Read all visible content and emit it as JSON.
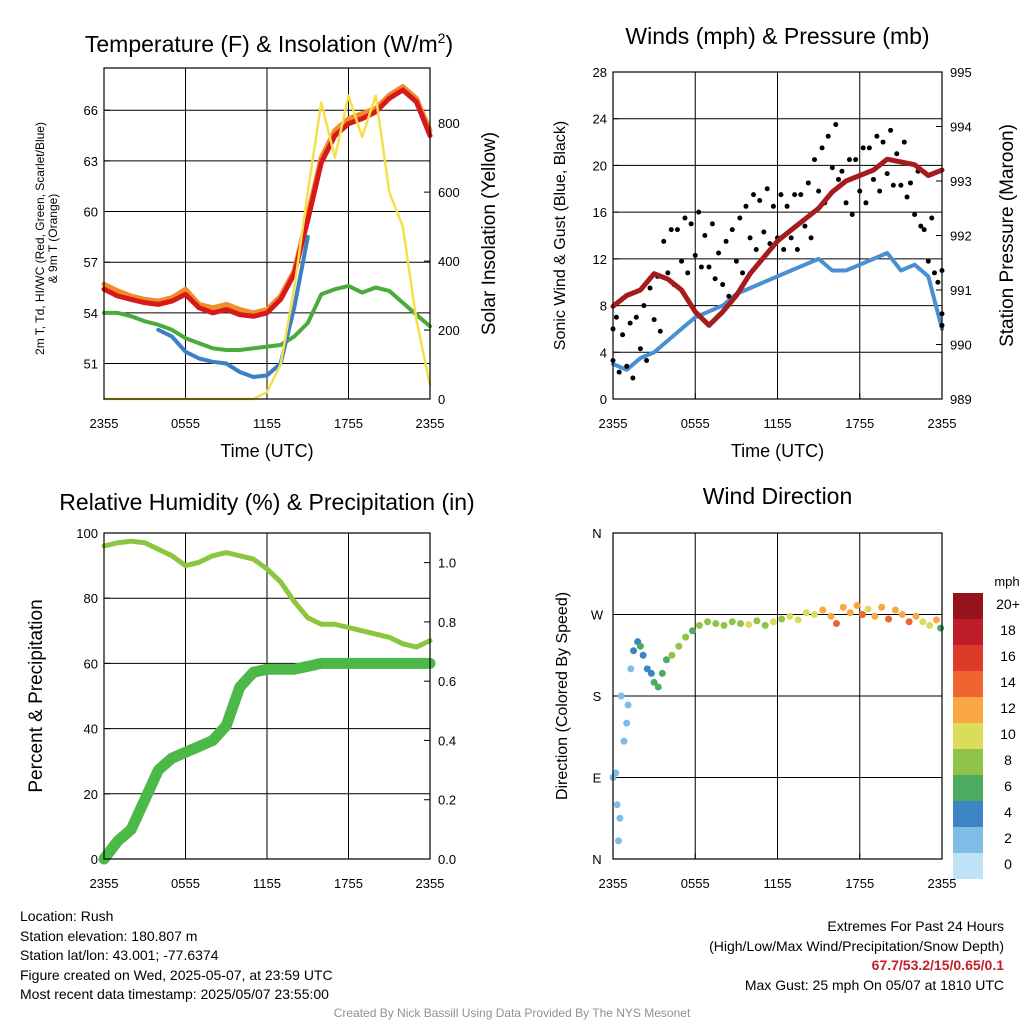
{
  "chart_data": [
    {
      "type": "line",
      "title": "Temperature (F) & Insolation (W/m²)",
      "xlabel": "Time (UTC)",
      "ylabel": "2m T, Td, HI/WC (Red, Green, Scarlet/Blue) & 9m T (Orange)",
      "y2label": "Solar Insolation (Yellow)",
      "x_ticks": [
        "2355",
        "0555",
        "1155",
        "1755",
        "2355"
      ],
      "y_ticks": [
        "51",
        "54",
        "57",
        "60",
        "63",
        "66"
      ],
      "ylim": [
        48.9,
        68.5
      ],
      "y2_ticks": [
        "0",
        "200",
        "400",
        "600",
        "800"
      ],
      "y2lim": [
        0,
        960
      ],
      "x_hours": [
        0,
        1,
        2,
        3,
        4,
        5,
        6,
        7,
        8,
        9,
        10,
        11,
        12,
        13,
        14,
        15,
        16,
        17,
        18,
        19,
        20,
        21,
        22,
        23,
        24
      ],
      "series": [
        {
          "key": "orange",
          "color": "#f28c28",
          "values": [
            55.7,
            55.3,
            55.0,
            54.8,
            54.7,
            54.9,
            55.4,
            54.5,
            54.3,
            54.5,
            54.2,
            54.0,
            54.2,
            55.0,
            56.5,
            59.8,
            63.2,
            64.8,
            65.5,
            65.8,
            66.1,
            66.9,
            67.4,
            66.7,
            64.8
          ]
        },
        {
          "key": "red",
          "color": "#d7191c",
          "values": [
            55.4,
            55.0,
            54.8,
            54.6,
            54.5,
            54.7,
            55.1,
            54.3,
            54.0,
            54.2,
            53.9,
            53.8,
            54.0,
            54.8,
            56.3,
            59.5,
            62.9,
            64.5,
            65.2,
            65.5,
            65.9,
            66.7,
            67.2,
            66.5,
            64.5
          ]
        },
        {
          "key": "green",
          "color": "#4aaa3c",
          "values": [
            54.0,
            54.0,
            53.8,
            53.5,
            53.3,
            53.0,
            52.5,
            52.2,
            51.9,
            51.8,
            51.8,
            51.9,
            52.0,
            52.1,
            52.6,
            53.4,
            55.1,
            55.4,
            55.6,
            55.2,
            55.5,
            55.3,
            54.6,
            53.9,
            53.2
          ]
        },
        {
          "key": "blue",
          "color": "#3d7fc4",
          "values": [
            null,
            null,
            null,
            null,
            53.0,
            52.6,
            51.7,
            51.3,
            51.1,
            51.0,
            50.5,
            50.2,
            50.3,
            51.0,
            54.3,
            58.5,
            null,
            null,
            null,
            null,
            null,
            null,
            null,
            null,
            null
          ]
        },
        {
          "key": "yellow",
          "axis": "y2",
          "color": "#f7df4b",
          "values": [
            0,
            0,
            0,
            0,
            0,
            0,
            0,
            0,
            0,
            0,
            0,
            0,
            20,
            100,
            320,
            600,
            860,
            700,
            880,
            760,
            880,
            600,
            500,
            230,
            40
          ]
        }
      ]
    },
    {
      "type": "line",
      "title": "Winds (mph) & Pressure (mb)",
      "xlabel": "Time (UTC)",
      "ylabel": "Sonic Wind & Gust (Blue, Black)",
      "y2label": "Station Pressure (Maroon)",
      "x_ticks": [
        "2355",
        "0555",
        "1155",
        "1755",
        "2355"
      ],
      "y_ticks": [
        "0",
        "4",
        "8",
        "12",
        "16",
        "20",
        "24",
        "28"
      ],
      "ylim": [
        0,
        28
      ],
      "y2_ticks": [
        "989",
        "990",
        "991",
        "992",
        "993",
        "994",
        "995"
      ],
      "y2lim": [
        989,
        995
      ],
      "x_hours": [
        0,
        1,
        2,
        3,
        4,
        5,
        6,
        7,
        8,
        9,
        10,
        11,
        12,
        13,
        14,
        15,
        16,
        17,
        18,
        19,
        20,
        21,
        22,
        23,
        24
      ],
      "series": [
        {
          "key": "wind",
          "color": "#4a90d0",
          "values": [
            3.0,
            2.5,
            3.5,
            4.0,
            5.0,
            6.0,
            7.0,
            7.5,
            8.0,
            9.0,
            9.5,
            10.0,
            10.5,
            11.0,
            11.5,
            12.0,
            11.0,
            11.0,
            11.5,
            12.0,
            12.5,
            11.0,
            11.5,
            10.5,
            6.0
          ]
        },
        {
          "key": "gust",
          "color": "#000000",
          "values": [
            4.5,
            4.0,
            5.5,
            8.0,
            12.0,
            13.0,
            13.5,
            12.5,
            11.0,
            13.0,
            15.0,
            15.5,
            15.0,
            15.0,
            16.0,
            19.0,
            21.0,
            18.0,
            19.0,
            20.0,
            20.5,
            19.5,
            17.0,
            13.0,
            8.5
          ]
        },
        {
          "key": "pressure",
          "axis": "y2",
          "color": "#a51c1c",
          "values": [
            990.7,
            990.9,
            991.0,
            991.3,
            991.2,
            991.0,
            990.6,
            990.35,
            990.6,
            990.9,
            991.3,
            991.6,
            991.9,
            992.1,
            992.3,
            992.5,
            992.8,
            993.0,
            993.1,
            993.2,
            993.4,
            993.35,
            993.3,
            993.1,
            993.2
          ]
        }
      ]
    },
    {
      "type": "line",
      "title": "Relative Humidity (%) & Precipitation (in)",
      "xlabel": "",
      "ylabel": "Percent & Precipitation",
      "x_ticks": [
        "2355",
        "0555",
        "1155",
        "1755",
        "2355"
      ],
      "y_ticks": [
        "0",
        "20",
        "40",
        "60",
        "80",
        "100"
      ],
      "ylim": [
        0,
        100
      ],
      "y2_ticks": [
        "0.0",
        "0.2",
        "0.4",
        "0.6",
        "0.8",
        "1.0"
      ],
      "y2lim": [
        0,
        1.1
      ],
      "x_hours": [
        0,
        1,
        2,
        3,
        4,
        5,
        6,
        7,
        8,
        9,
        10,
        11,
        12,
        13,
        14,
        15,
        16,
        17,
        18,
        19,
        20,
        21,
        22,
        23,
        24
      ],
      "series": [
        {
          "key": "rh",
          "color": "#8cc63f",
          "values": [
            96,
            97,
            97.5,
            97,
            95,
            93,
            90,
            91,
            93,
            94,
            93,
            92,
            89,
            85,
            79,
            74,
            72,
            72,
            71,
            70,
            69,
            68,
            66,
            65,
            67
          ]
        },
        {
          "key": "precip",
          "axis": "y2",
          "color": "#4cb848",
          "values": [
            0.0,
            0.06,
            0.1,
            0.2,
            0.3,
            0.34,
            0.36,
            0.38,
            0.4,
            0.45,
            0.58,
            0.63,
            0.64,
            0.64,
            0.64,
            0.65,
            0.66,
            0.66,
            0.66,
            0.66,
            0.66,
            0.66,
            0.66,
            0.66,
            0.66
          ]
        }
      ]
    },
    {
      "type": "scatter",
      "title": "Wind Direction",
      "xlabel": "",
      "ylabel": "Direction (Colored By Speed)",
      "x_ticks": [
        "2355",
        "0555",
        "1155",
        "1755",
        "2355"
      ],
      "y_ticks": [
        "N",
        "E",
        "S",
        "W",
        "N"
      ],
      "ylim": [
        0,
        360
      ],
      "colorbar_title": "mph",
      "colorbar_labels": [
        "20+",
        "18",
        "16",
        "14",
        "12",
        "10",
        "8",
        "6",
        "4",
        "2",
        "0"
      ],
      "colorbar_colors": [
        "#96131b",
        "#bd1d26",
        "#dc3a2a",
        "#ef6530",
        "#f9a643",
        "#dadd5a",
        "#8fc34a",
        "#4cab5f",
        "#3d84c2",
        "#7fbde6",
        "#bfe3f6"
      ],
      "points": [
        {
          "x": 0.0,
          "y": 90,
          "speed": 2
        },
        {
          "x": 0.2,
          "y": 95,
          "speed": 2
        },
        {
          "x": 0.3,
          "y": 60,
          "speed": 1
        },
        {
          "x": 0.4,
          "y": 20,
          "speed": 1
        },
        {
          "x": 0.5,
          "y": 45,
          "speed": 1
        },
        {
          "x": 0.8,
          "y": 130,
          "speed": 2
        },
        {
          "x": 1.0,
          "y": 150,
          "speed": 2
        },
        {
          "x": 1.1,
          "y": 170,
          "speed": 2
        },
        {
          "x": 0.6,
          "y": 180,
          "speed": 2
        },
        {
          "x": 1.3,
          "y": 210,
          "speed": 2
        },
        {
          "x": 1.5,
          "y": 230,
          "speed": 3
        },
        {
          "x": 1.8,
          "y": 240,
          "speed": 4
        },
        {
          "x": 2.0,
          "y": 235,
          "speed": 5
        },
        {
          "x": 2.2,
          "y": 225,
          "speed": 4
        },
        {
          "x": 2.5,
          "y": 210,
          "speed": 3
        },
        {
          "x": 2.8,
          "y": 205,
          "speed": 4
        },
        {
          "x": 3.0,
          "y": 195,
          "speed": 5
        },
        {
          "x": 3.3,
          "y": 190,
          "speed": 6
        },
        {
          "x": 3.6,
          "y": 205,
          "speed": 5
        },
        {
          "x": 3.9,
          "y": 220,
          "speed": 6
        },
        {
          "x": 4.3,
          "y": 225,
          "speed": 7
        },
        {
          "x": 4.8,
          "y": 235,
          "speed": 7
        },
        {
          "x": 5.3,
          "y": 245,
          "speed": 7
        },
        {
          "x": 5.8,
          "y": 252,
          "speed": 6
        },
        {
          "x": 6.3,
          "y": 258,
          "speed": 7
        },
        {
          "x": 6.9,
          "y": 262,
          "speed": 8
        },
        {
          "x": 7.5,
          "y": 260,
          "speed": 7
        },
        {
          "x": 8.1,
          "y": 258,
          "speed": 8
        },
        {
          "x": 8.7,
          "y": 262,
          "speed": 7
        },
        {
          "x": 9.3,
          "y": 260,
          "speed": 8
        },
        {
          "x": 9.9,
          "y": 259,
          "speed": 9
        },
        {
          "x": 10.5,
          "y": 263,
          "speed": 8
        },
        {
          "x": 11.1,
          "y": 258,
          "speed": 7
        },
        {
          "x": 11.7,
          "y": 262,
          "speed": 9
        },
        {
          "x": 12.3,
          "y": 265,
          "speed": 8
        },
        {
          "x": 12.9,
          "y": 268,
          "speed": 9
        },
        {
          "x": 13.5,
          "y": 264,
          "speed": 10
        },
        {
          "x": 14.1,
          "y": 272,
          "speed": 9
        },
        {
          "x": 14.7,
          "y": 270,
          "speed": 10
        },
        {
          "x": 15.3,
          "y": 275,
          "speed": 11
        },
        {
          "x": 15.9,
          "y": 268,
          "speed": 12
        },
        {
          "x": 16.3,
          "y": 260,
          "speed": 14
        },
        {
          "x": 16.8,
          "y": 278,
          "speed": 11
        },
        {
          "x": 17.3,
          "y": 272,
          "speed": 12
        },
        {
          "x": 17.8,
          "y": 280,
          "speed": 12
        },
        {
          "x": 18.2,
          "y": 270,
          "speed": 13
        },
        {
          "x": 18.6,
          "y": 276,
          "speed": 10
        },
        {
          "x": 19.1,
          "y": 268,
          "speed": 11
        },
        {
          "x": 19.6,
          "y": 278,
          "speed": 12
        },
        {
          "x": 20.1,
          "y": 265,
          "speed": 13
        },
        {
          "x": 20.6,
          "y": 275,
          "speed": 11
        },
        {
          "x": 21.1,
          "y": 270,
          "speed": 12
        },
        {
          "x": 21.6,
          "y": 262,
          "speed": 14
        },
        {
          "x": 22.1,
          "y": 268,
          "speed": 12
        },
        {
          "x": 22.6,
          "y": 262,
          "speed": 9
        },
        {
          "x": 23.1,
          "y": 258,
          "speed": 10
        },
        {
          "x": 23.6,
          "y": 264,
          "speed": 11
        },
        {
          "x": 23.9,
          "y": 255,
          "speed": 6
        }
      ]
    }
  ],
  "info": {
    "location": "Location: Rush",
    "elevation": "Station elevation: 180.807 m",
    "latlon": "Station lat/lon: 43.001; -77.6374",
    "created": "Figure created on Wed, 2025-05-07, at 23:59 UTC",
    "recent": "Most recent data timestamp: 2025/05/07 23:55:00"
  },
  "extremes": {
    "title": "Extremes For Past 24 Hours",
    "subtitle": "(High/Low/Max Wind/Precipitation/Snow Depth)",
    "values": "67.7/53.2/15/0.65/0.1",
    "gust": "Max Gust: 25 mph On 05/07 at 1810 UTC"
  },
  "credit": "Created By Nick Bassill Using Data Provided By The NYS Mesonet"
}
